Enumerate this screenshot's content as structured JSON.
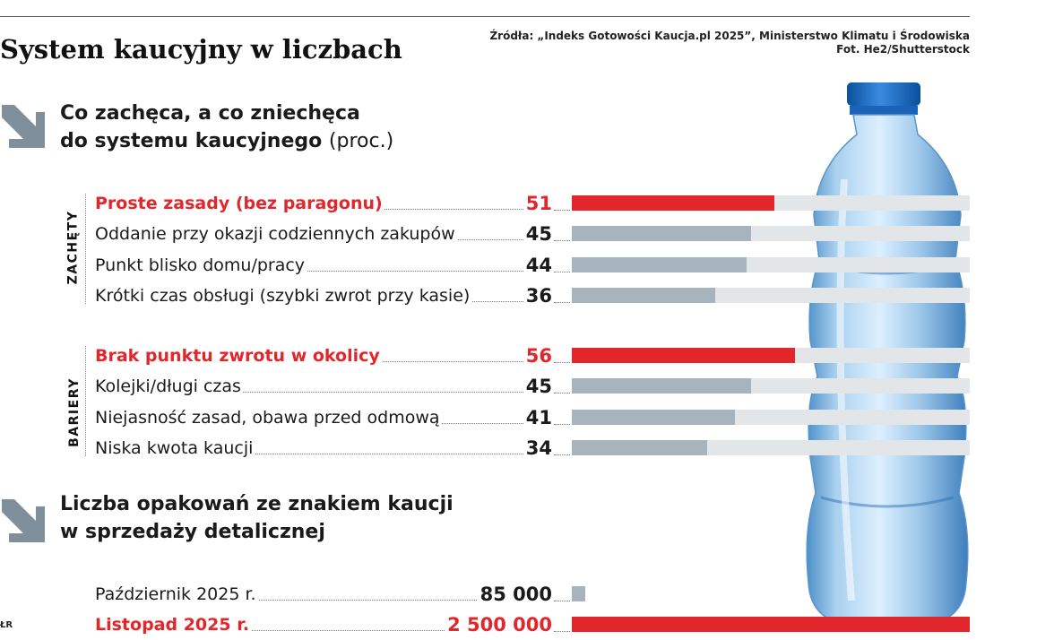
{
  "header": {
    "title": "System kaucyjny w liczbach",
    "source_line1": "Źródła: „Indeks Gotowości Kaucja.pl 2025”, Ministerstwo Klimatu i Środowiska",
    "source_line2": "Fot. He2/Shutterstock"
  },
  "section1": {
    "title_line1": "Co zachęca, a co zniechęca",
    "title_line2": "do systemu kaucyjnego",
    "unit": "(proc.)"
  },
  "section2": {
    "title_line1": "Liczba opakowań ze znakiem kaucji",
    "title_line2": "w sprzedaży detalicznej"
  },
  "credit": "ŁR",
  "colors": {
    "accent": "#e1262c",
    "bar": "#a7b3bd",
    "track": "#e3e6e8",
    "arrow": "#7f8f9b"
  },
  "chart_data": [
    {
      "type": "bar",
      "title": "Co zachęca, a co zniechęca do systemu kaucyjnego (proc.)",
      "xlim": [
        0,
        100
      ],
      "groups": [
        {
          "name": "ZACHĘTY",
          "items": [
            {
              "label": "Proste zasady (bez paragonu)",
              "value": 51,
              "highlight": true
            },
            {
              "label": "Oddanie przy okazji codziennych zakupów",
              "value": 45,
              "highlight": false
            },
            {
              "label": "Punkt blisko domu/pracy",
              "value": 44,
              "highlight": false
            },
            {
              "label": "Krótki czas obsługi (szybki zwrot przy kasie)",
              "value": 36,
              "highlight": false
            }
          ]
        },
        {
          "name": "BARIERY",
          "items": [
            {
              "label": "Brak punktu zwrotu w okolicy",
              "value": 56,
              "highlight": true
            },
            {
              "label": "Kolejki/długi czas",
              "value": 45,
              "highlight": false
            },
            {
              "label": "Niejasność zasad, obawa przed odmową",
              "value": 41,
              "highlight": false
            },
            {
              "label": "Niska kwota kaucji",
              "value": 34,
              "highlight": false
            }
          ]
        }
      ]
    },
    {
      "type": "bar",
      "title": "Liczba opakowań ze znakiem kaucji w sprzedaży detalicznej",
      "xlim": [
        0,
        2500000
      ],
      "items": [
        {
          "label": "Październik 2025 r.",
          "value": 85000,
          "display": "85 000",
          "highlight": false
        },
        {
          "label": "Listopad 2025 r.",
          "value": 2500000,
          "display": "2 500 000",
          "highlight": true
        }
      ]
    }
  ]
}
